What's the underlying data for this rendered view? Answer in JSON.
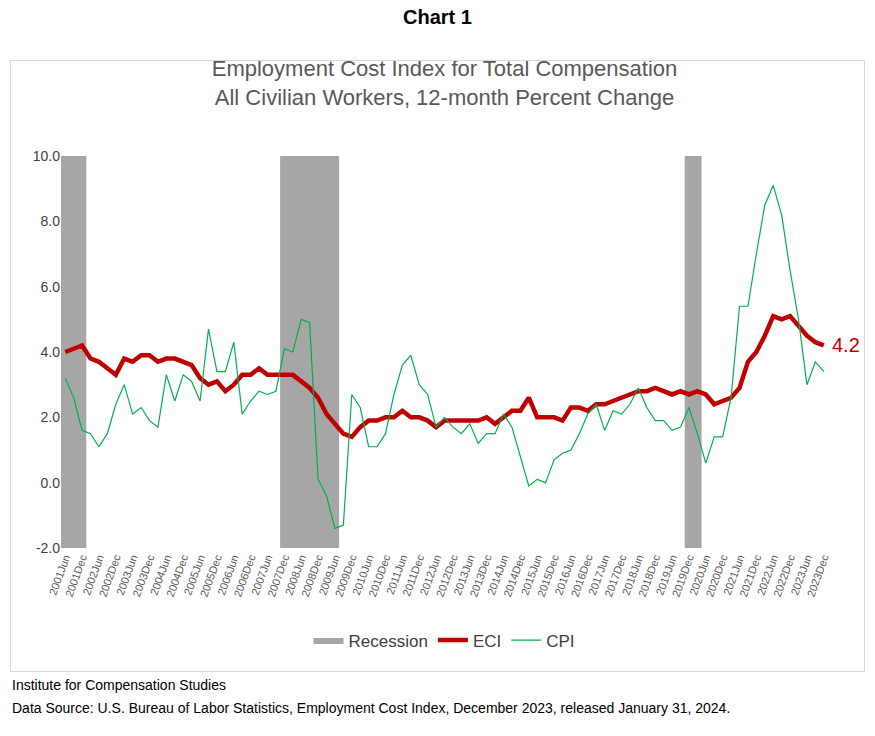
{
  "header": "Chart 1",
  "chart_data": {
    "type": "line",
    "title": [
      "Employment Cost Index for Total Compensation",
      "All Civilian Workers, 12-month Percent Change"
    ],
    "categories": [
      "2001Jun",
      null,
      "2001Dec",
      null,
      "2002Jun",
      null,
      "2002Dec",
      null,
      "2003Jun",
      null,
      "2003Dec",
      null,
      "2004Jun",
      null,
      "2004Dec",
      null,
      "2005Jun",
      null,
      "2005Dec",
      null,
      "2006Jun",
      null,
      "2006Dec",
      null,
      "2007Jun",
      null,
      "2007Dec",
      null,
      "2008Jun",
      null,
      "2008Dec",
      null,
      "2009Jun",
      null,
      "2009Dec",
      null,
      "2010Jun",
      null,
      "2010Dec",
      null,
      "2011Jun",
      null,
      "2011Dec",
      null,
      "2012Jun",
      null,
      "2012Dec",
      null,
      "2013Jun",
      null,
      "2013Dec",
      null,
      "2014Jun",
      null,
      "2014Dec",
      null,
      "2015Jun",
      null,
      "2015Dec",
      null,
      "2016Jun",
      null,
      "2016Dec",
      null,
      "2017Jun",
      null,
      "2017Dec",
      null,
      "2018Jun",
      null,
      "2018Dec",
      null,
      "2019Jun",
      null,
      "2019Dec",
      null,
      "2020Jun",
      null,
      "2020Dec",
      null,
      "2021Jun",
      null,
      "2021Dec",
      null,
      "2022Jun",
      null,
      "2022Dec",
      null,
      "2023Jun",
      null,
      "2023Dec"
    ],
    "series": [
      {
        "name": "Recession",
        "type": "bar",
        "color": "#a6a6a6",
        "values": [
          10,
          10,
          10,
          null,
          null,
          null,
          null,
          null,
          null,
          null,
          null,
          null,
          null,
          null,
          null,
          null,
          null,
          null,
          null,
          null,
          null,
          null,
          null,
          null,
          null,
          null,
          10,
          10,
          10,
          10,
          10,
          10,
          10,
          null,
          null,
          null,
          null,
          null,
          null,
          null,
          null,
          null,
          null,
          null,
          null,
          null,
          null,
          null,
          null,
          null,
          null,
          null,
          null,
          null,
          null,
          null,
          null,
          null,
          null,
          null,
          null,
          null,
          null,
          null,
          null,
          null,
          null,
          null,
          null,
          null,
          null,
          null,
          null,
          null,
          10,
          10,
          null,
          null,
          null,
          null,
          null,
          null,
          null,
          null,
          null,
          null,
          null,
          null,
          null,
          null,
          null
        ]
      },
      {
        "name": "ECI",
        "type": "line",
        "color": "#c00000",
        "line_style": "thick",
        "values": [
          4.0,
          4.1,
          4.2,
          3.8,
          3.7,
          3.5,
          3.3,
          3.8,
          3.7,
          3.9,
          3.9,
          3.7,
          3.8,
          3.8,
          3.7,
          3.6,
          3.2,
          3.0,
          3.1,
          2.8,
          3.0,
          3.3,
          3.3,
          3.5,
          3.3,
          3.3,
          3.3,
          3.3,
          3.1,
          2.9,
          2.6,
          2.1,
          1.8,
          1.5,
          1.4,
          1.7,
          1.9,
          1.9,
          2.0,
          2.0,
          2.2,
          2.0,
          2.0,
          1.9,
          1.7,
          1.9,
          1.9,
          1.9,
          1.9,
          1.9,
          2.0,
          1.8,
          2.0,
          2.2,
          2.2,
          2.6,
          2.0,
          2.0,
          2.0,
          1.9,
          2.3,
          2.3,
          2.2,
          2.4,
          2.4,
          2.5,
          2.6,
          2.7,
          2.8,
          2.8,
          2.9,
          2.8,
          2.7,
          2.8,
          2.7,
          2.8,
          2.7,
          2.4,
          2.5,
          2.6,
          2.9,
          3.7,
          4.0,
          4.5,
          5.1,
          5.0,
          5.1,
          4.8,
          4.5,
          4.3,
          4.2
        ]
      },
      {
        "name": "CPI",
        "type": "line",
        "color": "#00b050",
        "line_style": "thin",
        "values": [
          3.2,
          2.6,
          1.6,
          1.5,
          1.1,
          1.5,
          2.4,
          3.0,
          2.1,
          2.3,
          1.9,
          1.7,
          3.3,
          2.5,
          3.3,
          3.1,
          2.5,
          4.7,
          3.4,
          3.4,
          4.3,
          2.1,
          2.5,
          2.8,
          2.7,
          2.8,
          4.1,
          4.0,
          5.0,
          4.9,
          0.1,
          -0.4,
          -1.4,
          -1.3,
          2.7,
          2.3,
          1.1,
          1.1,
          1.5,
          2.7,
          3.6,
          3.9,
          3.0,
          2.7,
          1.7,
          2.0,
          1.7,
          1.5,
          1.8,
          1.2,
          1.5,
          1.5,
          2.1,
          1.7,
          0.8,
          -0.1,
          0.1,
          0.0,
          0.7,
          0.9,
          1.0,
          1.5,
          2.1,
          2.4,
          1.6,
          2.2,
          2.1,
          2.4,
          2.9,
          2.3,
          1.9,
          1.9,
          1.6,
          1.7,
          2.3,
          1.5,
          0.6,
          1.4,
          1.4,
          2.6,
          5.4,
          5.4,
          7.0,
          8.5,
          9.1,
          8.2,
          6.5,
          5.0,
          3.0,
          3.7,
          3.4
        ]
      }
    ],
    "ylim": [
      -2,
      10
    ],
    "yticks": [
      {
        "value": -2,
        "label": "-2.0"
      },
      {
        "value": 0,
        "label": "0.0"
      },
      {
        "value": 2,
        "label": "2.0"
      },
      {
        "value": 4,
        "label": "4.0"
      },
      {
        "value": 6,
        "label": "6.0"
      },
      {
        "value": 8,
        "label": "8.0"
      },
      {
        "value": 10,
        "label": "10.0"
      }
    ],
    "grid": false,
    "legend": "bottom",
    "annotations": [
      {
        "text": "4.2",
        "x": "2023Dec",
        "y": 4.2,
        "series": "ECI"
      }
    ]
  },
  "notes": [
    "Institute for Compensation Studies",
    "Data Source: U.S. Bureau of Labor Statistics, Employment Cost Index, December 2023, released January 31, 2024."
  ]
}
